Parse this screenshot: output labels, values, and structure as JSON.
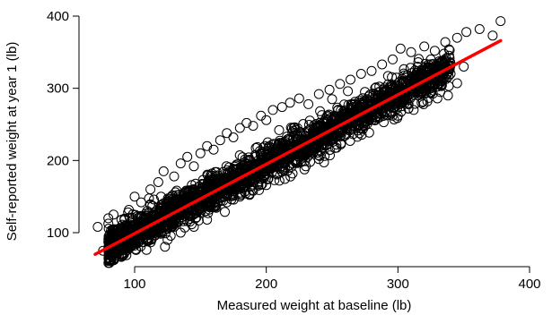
{
  "chart_data": {
    "type": "scatter",
    "title": "",
    "xlabel": "Measured weight at baseline (lb)",
    "ylabel": "Self-reported weight at year 1 (lb)",
    "xlim": [
      65,
      400
    ],
    "ylim": [
      60,
      400
    ],
    "xticks": [
      100,
      200,
      300,
      400
    ],
    "yticks": [
      100,
      200,
      300,
      400
    ],
    "grid": false,
    "legend": "none",
    "marker": "open-circle",
    "point_color": "#000000",
    "fit_color": "#ff0000",
    "fit_line": {
      "x": [
        70,
        378
      ],
      "y": [
        70,
        366
      ]
    },
    "series": [
      {
        "values_note": "",
        "points": [
          [
            72,
            108
          ],
          [
            80,
            120
          ],
          [
            84,
            125
          ],
          [
            90,
            118
          ],
          [
            95,
            128
          ],
          [
            100,
            150
          ],
          [
            105,
            142
          ],
          [
            112,
            160
          ],
          [
            118,
            170
          ],
          [
            122,
            185
          ],
          [
            130,
            178
          ],
          [
            135,
            196
          ],
          [
            140,
            205
          ],
          [
            145,
            192
          ],
          [
            150,
            210
          ],
          [
            155,
            220
          ],
          [
            160,
            215
          ],
          [
            165,
            228
          ],
          [
            170,
            238
          ],
          [
            175,
            232
          ],
          [
            180,
            245
          ],
          [
            185,
            252
          ],
          [
            190,
            248
          ],
          [
            196,
            262
          ],
          [
            200,
            256
          ],
          [
            205,
            270
          ],
          [
            212,
            274
          ],
          [
            218,
            280
          ],
          [
            225,
            286
          ],
          [
            232,
            278
          ],
          [
            240,
            292
          ],
          [
            248,
            298
          ],
          [
            256,
            306
          ],
          [
            264,
            312
          ],
          [
            272,
            320
          ],
          [
            280,
            324
          ],
          [
            288,
            333
          ],
          [
            296,
            340
          ],
          [
            302,
            355
          ],
          [
            310,
            350
          ],
          [
            320,
            358
          ],
          [
            328,
            352
          ],
          [
            336,
            364
          ],
          [
            345,
            370
          ],
          [
            352,
            378
          ],
          [
            362,
            382
          ],
          [
            372,
            373
          ],
          [
            378,
            393
          ],
          [
            250,
            245
          ],
          [
            262,
            255
          ],
          [
            275,
            262
          ],
          [
            288,
            268
          ],
          [
            300,
            262
          ],
          [
            312,
            270
          ],
          [
            325,
            300
          ],
          [
            340,
            320
          ],
          [
            350,
            330
          ],
          [
            345,
            307
          ],
          [
            338,
            290
          ],
          [
            330,
            286
          ],
          [
            318,
            280
          ],
          [
            308,
            272
          ],
          [
            150,
            128
          ],
          [
            160,
            136
          ],
          [
            170,
            142
          ],
          [
            180,
            150
          ],
          [
            190,
            158
          ],
          [
            200,
            166
          ],
          [
            210,
            172
          ],
          [
            220,
            182
          ],
          [
            230,
            192
          ],
          [
            240,
            202
          ],
          [
            110,
            92
          ],
          [
            120,
            100
          ],
          [
            130,
            108
          ],
          [
            140,
            116
          ],
          [
            125,
            90
          ],
          [
            135,
            100
          ],
          [
            145,
            108
          ],
          [
            155,
            118
          ],
          [
            85,
            80
          ],
          [
            95,
            86
          ],
          [
            100,
            98
          ],
          [
            108,
            106
          ],
          [
            115,
            112
          ],
          [
            76,
            75
          ],
          [
            82,
            80
          ],
          [
            90,
            88
          ],
          [
            250,
            285
          ],
          [
            262,
            296
          ],
          [
            270,
            270
          ],
          [
            285,
            290
          ],
          [
            295,
            305
          ],
          [
            305,
            318
          ],
          [
            315,
            330
          ],
          [
            325,
            340
          ]
        ]
      }
    ]
  }
}
